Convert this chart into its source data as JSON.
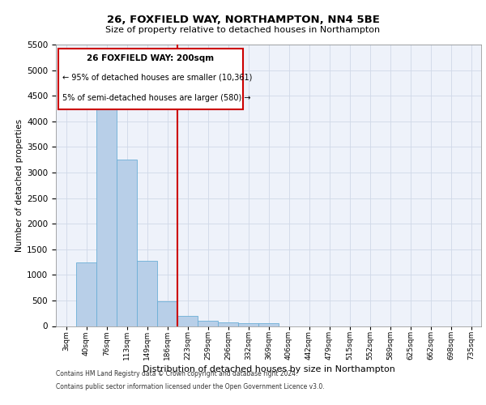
{
  "title_line1": "26, FOXFIELD WAY, NORTHAMPTON, NN4 5BE",
  "title_line2": "Size of property relative to detached houses in Northampton",
  "xlabel": "Distribution of detached houses by size in Northampton",
  "ylabel": "Number of detached properties",
  "categories": [
    "3sqm",
    "40sqm",
    "76sqm",
    "113sqm",
    "149sqm",
    "186sqm",
    "223sqm",
    "259sqm",
    "296sqm",
    "332sqm",
    "369sqm",
    "406sqm",
    "442sqm",
    "479sqm",
    "515sqm",
    "552sqm",
    "589sqm",
    "625sqm",
    "662sqm",
    "698sqm",
    "735sqm"
  ],
  "bar_values": [
    0,
    1250,
    4300,
    3250,
    1280,
    480,
    200,
    100,
    70,
    60,
    50,
    0,
    0,
    0,
    0,
    0,
    0,
    0,
    0,
    0,
    0
  ],
  "bar_color": "#b8cfe8",
  "bar_edge_color": "#6baed6",
  "vline_color": "#cc0000",
  "ylim": [
    0,
    5500
  ],
  "yticks": [
    0,
    500,
    1000,
    1500,
    2000,
    2500,
    3000,
    3500,
    4000,
    4500,
    5000,
    5500
  ],
  "annotation_title": "26 FOXFIELD WAY: 200sqm",
  "annotation_line1": "← 95% of detached houses are smaller (10,361)",
  "annotation_line2": "5% of semi-detached houses are larger (580) →",
  "annotation_box_color": "#cc0000",
  "footer_line1": "Contains HM Land Registry data © Crown copyright and database right 2024.",
  "footer_line2": "Contains public sector information licensed under the Open Government Licence v3.0.",
  "grid_color": "#d0d8e8",
  "bg_color": "#eef2fa"
}
